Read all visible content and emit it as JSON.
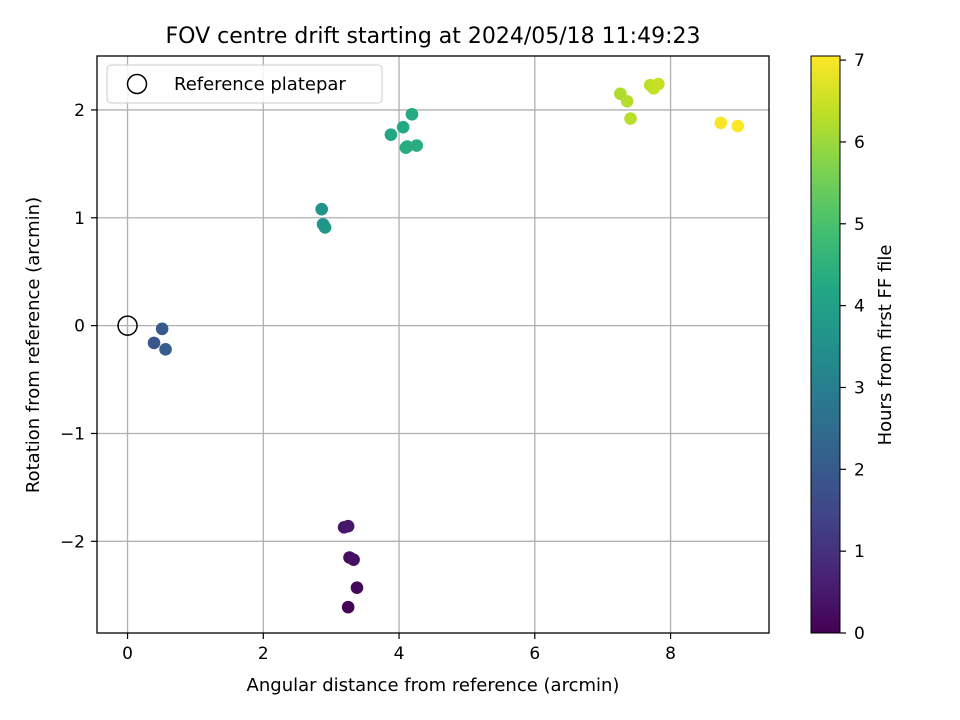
{
  "chart_data": {
    "type": "scatter",
    "title": "FOV centre drift starting at 2024/05/18 11:49:23",
    "xlabel": "Angular distance from reference (arcmin)",
    "ylabel": "Rotation from reference (arcmin)",
    "xlim": [
      -0.45,
      9.45
    ],
    "ylim": [
      -2.85,
      2.5
    ],
    "xticks": [
      0,
      2,
      4,
      6,
      8
    ],
    "yticks": [
      2,
      1,
      0,
      -1,
      -2
    ],
    "ytick_labels": [
      "2",
      "1",
      "0",
      "−1",
      "−2"
    ],
    "grid": true,
    "legend": {
      "placement": "top-left",
      "label": "Reference platepar"
    },
    "reference_point": {
      "x": 0,
      "y": 0
    },
    "colorbar": {
      "label": "Hours from first FF file",
      "range": [
        0,
        7.05
      ],
      "ticks": [
        0,
        1,
        2,
        3,
        4,
        5,
        6,
        7
      ],
      "colormap": "viridis"
    },
    "points": [
      {
        "x": 3.25,
        "y": -2.61,
        "t": 0.05
      },
      {
        "x": 3.38,
        "y": -2.43,
        "t": 0.15
      },
      {
        "x": 3.27,
        "y": -2.15,
        "t": 0.25
      },
      {
        "x": 3.33,
        "y": -2.17,
        "t": 0.3
      },
      {
        "x": 3.19,
        "y": -1.87,
        "t": 0.4
      },
      {
        "x": 3.25,
        "y": -1.86,
        "t": 0.45
      },
      {
        "x": 0.39,
        "y": -0.16,
        "t": 1.9
      },
      {
        "x": 0.51,
        "y": -0.03,
        "t": 2.0
      },
      {
        "x": 0.56,
        "y": -0.22,
        "t": 2.05
      },
      {
        "x": 2.86,
        "y": 1.08,
        "t": 3.6
      },
      {
        "x": 2.88,
        "y": 0.94,
        "t": 3.65
      },
      {
        "x": 2.91,
        "y": 0.91,
        "t": 3.7
      },
      {
        "x": 3.88,
        "y": 1.77,
        "t": 4.2
      },
      {
        "x": 4.06,
        "y": 1.84,
        "t": 4.25
      },
      {
        "x": 4.19,
        "y": 1.96,
        "t": 4.3
      },
      {
        "x": 4.12,
        "y": 1.66,
        "t": 4.3
      },
      {
        "x": 4.1,
        "y": 1.65,
        "t": 4.35
      },
      {
        "x": 4.26,
        "y": 1.67,
        "t": 4.4
      },
      {
        "x": 7.26,
        "y": 2.15,
        "t": 6.2
      },
      {
        "x": 7.36,
        "y": 2.08,
        "t": 6.25
      },
      {
        "x": 7.41,
        "y": 1.92,
        "t": 6.3
      },
      {
        "x": 7.7,
        "y": 2.23,
        "t": 6.35
      },
      {
        "x": 7.75,
        "y": 2.2,
        "t": 6.4
      },
      {
        "x": 7.82,
        "y": 2.24,
        "t": 6.45
      },
      {
        "x": 8.74,
        "y": 1.88,
        "t": 7.0
      },
      {
        "x": 8.99,
        "y": 1.85,
        "t": 7.05
      }
    ]
  }
}
